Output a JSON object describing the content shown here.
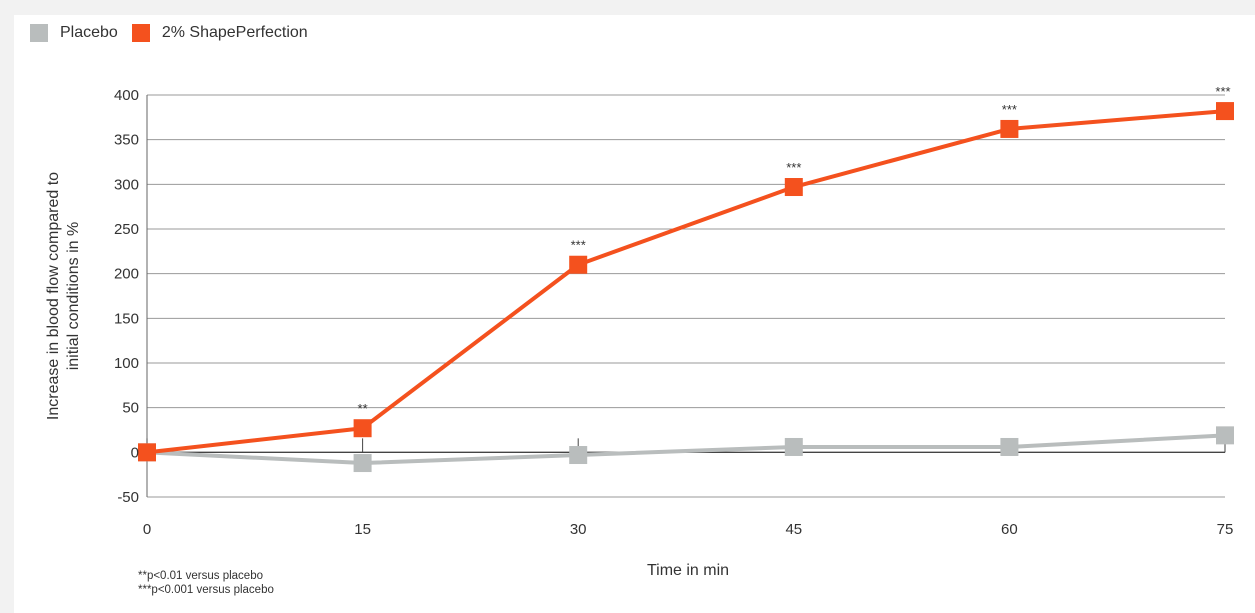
{
  "chart_data": {
    "type": "line",
    "x": [
      0,
      15,
      30,
      45,
      60,
      75
    ],
    "series": [
      {
        "name": "Placebo",
        "color": "#b9bdbd",
        "values": [
          0,
          -12,
          -3,
          6,
          6,
          19
        ]
      },
      {
        "name": "2% ShapePerfection",
        "color": "#f4511e",
        "values": [
          0,
          27,
          210,
          297,
          362,
          382
        ]
      }
    ],
    "significance": [
      "",
      "**",
      "***",
      "***",
      "***",
      "***"
    ],
    "xlabel": "Time in min",
    "ylabel": [
      "Increase in blood flow compared to",
      "initial conditions in %"
    ],
    "xticks": [
      "0",
      "15",
      "30",
      "45",
      "60",
      "75"
    ],
    "yticks": [
      400,
      350,
      300,
      250,
      200,
      150,
      100,
      50,
      0,
      -50
    ],
    "ylim": [
      -50,
      400
    ],
    "xlim": [
      0,
      75
    ],
    "grid": true,
    "legend_position": "top-left"
  },
  "footnotes": [
    "**p<0.01   versus placebo",
    "***p<0.001 versus placebo"
  ]
}
